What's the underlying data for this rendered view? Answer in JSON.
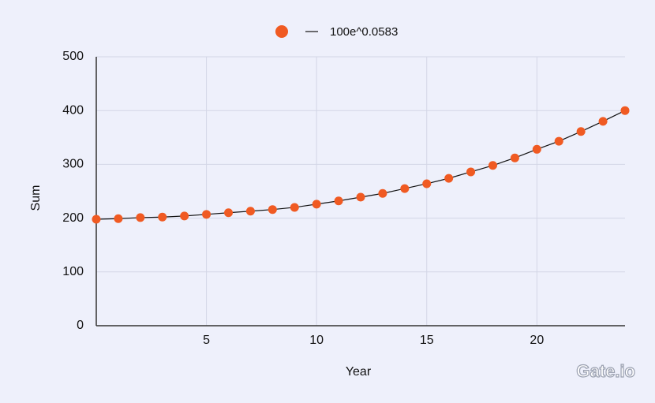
{
  "chart_data": {
    "type": "line",
    "x": [
      0,
      1,
      2,
      3,
      4,
      5,
      6,
      7,
      8,
      9,
      10,
      11,
      12,
      13,
      14,
      15,
      16,
      17,
      18,
      19,
      20,
      21,
      22,
      23,
      24
    ],
    "series": [
      {
        "name": "100e^0.0583",
        "color": "#f05a22",
        "values": [
          198,
          199,
          201,
          202,
          204,
          207,
          210,
          213,
          216,
          220,
          226,
          232,
          239,
          246,
          255,
          264,
          274,
          286,
          298,
          312,
          328,
          343,
          361,
          380,
          400
        ]
      }
    ],
    "xlabel": "Year",
    "ylabel": "Sum",
    "xlim": [
      0,
      24
    ],
    "xticks": [
      5,
      10,
      15,
      20
    ],
    "ylim": [
      0,
      500
    ],
    "yticks": [
      0,
      100,
      200,
      300,
      400,
      500
    ],
    "grid": true,
    "legend": "top",
    "logo": "Gate.io"
  }
}
